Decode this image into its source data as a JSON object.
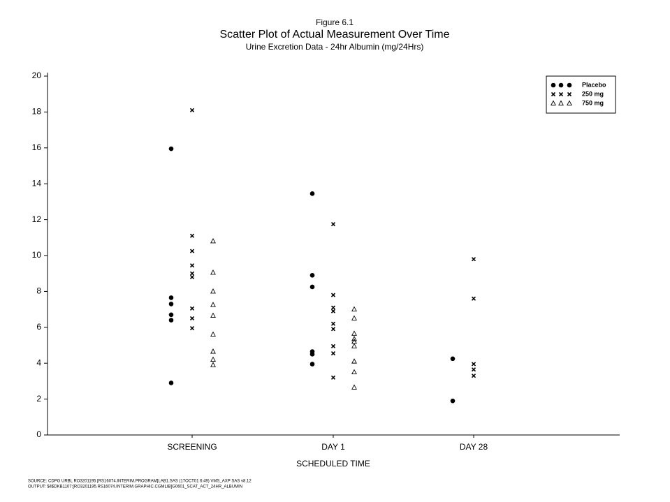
{
  "chart_data": {
    "type": "scatter",
    "pretitle": "Figure 6.1",
    "title": "Scatter Plot of Actual Measurement Over Time",
    "subtitle": "Urine Excretion Data - 24hr Albumin (mg/24Hrs)",
    "x_label": "SCHEDULED TIME",
    "categories": [
      "SCREENING",
      "DAY 1",
      "DAY 28"
    ],
    "ylim": [
      0,
      20
    ],
    "yticks": [
      0,
      2,
      4,
      6,
      8,
      10,
      12,
      14,
      16,
      18,
      20
    ],
    "legend": "top-right",
    "series": [
      {
        "name": "Placebo",
        "color": "#000000",
        "marker": "circle",
        "values": [
          [
            15.95,
            7.65,
            7.3,
            6.7,
            6.4,
            2.9
          ],
          [
            13.45,
            8.9,
            8.25,
            4.65,
            4.5,
            3.95
          ],
          [
            4.25,
            1.9
          ]
        ]
      },
      {
        "name": "250  mg",
        "color": "#000000",
        "marker": "x",
        "values": [
          [
            18.1,
            11.1,
            10.25,
            9.45,
            9.0,
            8.8,
            7.05,
            6.5,
            5.95
          ],
          [
            11.75,
            7.8,
            7.1,
            6.9,
            6.2,
            5.9,
            4.95,
            4.55,
            3.2
          ],
          [
            9.8,
            7.6,
            3.95,
            3.65,
            3.3
          ]
        ]
      },
      {
        "name": "750  mg",
        "color": "#000000",
        "marker": "triangle",
        "values": [
          [
            10.8,
            9.05,
            8.0,
            7.25,
            6.65,
            5.6,
            4.65,
            4.2,
            3.9
          ],
          [
            7.0,
            6.5,
            5.65,
            5.35,
            5.2,
            4.95,
            4.1,
            3.5,
            2.65
          ],
          []
        ]
      }
    ],
    "footnotes": [
      "SOURCE: CDPG URBL RO3201195 [RS16074.INTERIM.PROGRAM]LAB1.SAS (17OCT01 6:49) VMS_AXP SAS v8.12",
      "OUTPUT: $4$DKB1107:[RO3201195.RS16074.INTERIM.GRAPHIC.CGMLIB]G0601_SCAT_ACT_24HR_ALBUMIN"
    ]
  }
}
